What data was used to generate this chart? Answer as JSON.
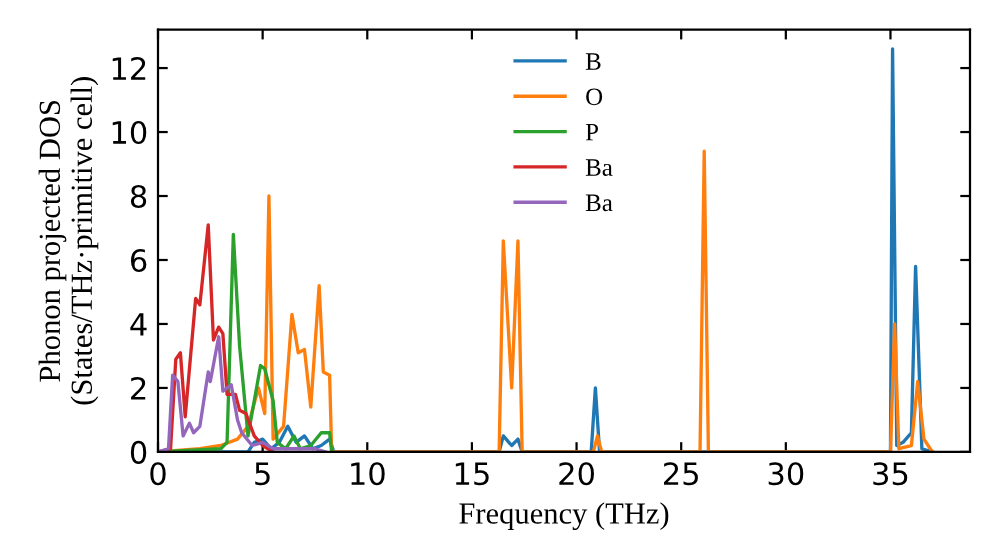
{
  "chart_data": {
    "type": "line",
    "xlabel": "Frequency (THz)",
    "ylabel": "Phonon projected DOS\n(States/THz·primitive cell)",
    "xlim": [
      0,
      38.8
    ],
    "ylim": [
      0,
      13.2
    ],
    "xticks": [
      0,
      5,
      10,
      15,
      20,
      25,
      30,
      35
    ],
    "yticks": [
      0,
      2,
      4,
      6,
      8,
      10,
      12
    ],
    "grid": false,
    "legend": "top",
    "marker": "none",
    "line_style": "solid",
    "series": [
      {
        "name": "B",
        "color": "#1f77b4",
        "x": [
          0,
          4.3,
          4.6,
          5.0,
          5.4,
          5.8,
          6.2,
          6.6,
          7.0,
          7.4,
          7.8,
          8.2,
          8.4,
          16.3,
          16.5,
          16.9,
          17.2,
          17.4,
          20.7,
          20.9,
          21.1,
          35.0,
          35.1,
          35.3,
          35.6,
          36.0,
          36.2,
          36.5,
          37.0
        ],
        "values": [
          0,
          0,
          0.3,
          0.4,
          0.1,
          0.3,
          0.8,
          0.3,
          0.5,
          0.1,
          0.2,
          0.4,
          0,
          0,
          0.5,
          0.2,
          0.4,
          0,
          0,
          2.0,
          0,
          0,
          12.6,
          0.2,
          0.3,
          0.6,
          5.8,
          0.1,
          0
        ]
      },
      {
        "name": "O",
        "color": "#ff7f0e",
        "x": [
          0,
          2.0,
          3.0,
          3.8,
          4.3,
          4.8,
          5.1,
          5.3,
          5.5,
          6.0,
          6.4,
          6.7,
          7.0,
          7.3,
          7.7,
          7.9,
          8.2,
          8.3,
          16.3,
          16.5,
          16.9,
          17.2,
          17.4,
          20.8,
          21.0,
          21.2,
          25.9,
          26.1,
          26.3,
          35.0,
          35.2,
          35.4,
          36.0,
          36.3,
          36.6,
          37.0
        ],
        "values": [
          0,
          0.1,
          0.2,
          0.4,
          0.8,
          2.0,
          1.2,
          8.0,
          0.4,
          0.8,
          4.3,
          3.1,
          3.2,
          1.4,
          5.2,
          2.5,
          2.4,
          0,
          0,
          6.6,
          2.0,
          6.6,
          0,
          0,
          0.5,
          0,
          0,
          9.4,
          0,
          0,
          4.0,
          0.1,
          0.2,
          2.2,
          0.4,
          0
        ]
      },
      {
        "name": "P",
        "color": "#2ca02c",
        "x": [
          0,
          3.0,
          3.3,
          3.6,
          3.9,
          4.3,
          4.9,
          5.1,
          5.5,
          5.7,
          6.1,
          6.5,
          6.8,
          7.3,
          7.8,
          8.2,
          8.3
        ],
        "values": [
          0,
          0.1,
          0.3,
          6.8,
          3.3,
          0.5,
          2.7,
          2.6,
          1.6,
          0.3,
          0.1,
          0.5,
          0.1,
          0.2,
          0.6,
          0.6,
          0
        ]
      },
      {
        "name": "Ba",
        "color": "#d62728",
        "x": [
          0,
          0.6,
          0.85,
          1.07,
          1.3,
          1.8,
          2.0,
          2.4,
          2.65,
          2.9,
          3.1,
          3.3,
          3.7,
          3.9,
          4.2,
          4.6,
          5.0,
          5.5
        ],
        "values": [
          0,
          0.1,
          2.9,
          3.1,
          1.1,
          4.8,
          4.6,
          7.1,
          3.5,
          3.9,
          3.7,
          1.8,
          1.8,
          1.3,
          1.2,
          0.5,
          0.2,
          0
        ]
      },
      {
        "name": "Ba",
        "color": "#9467bd",
        "x": [
          0,
          0.5,
          0.7,
          0.95,
          1.2,
          1.5,
          1.7,
          2.0,
          2.4,
          2.5,
          2.9,
          3.1,
          3.5,
          3.8,
          4.0,
          4.5,
          5.0,
          5.5,
          6.5,
          7.5,
          8.0
        ],
        "values": [
          0,
          0.1,
          2.4,
          2.2,
          0.5,
          0.9,
          0.6,
          0.8,
          2.5,
          2.2,
          3.6,
          1.9,
          2.1,
          1.0,
          0.6,
          0.2,
          0.3,
          0.1,
          0.1,
          0.1,
          0
        ]
      }
    ]
  }
}
